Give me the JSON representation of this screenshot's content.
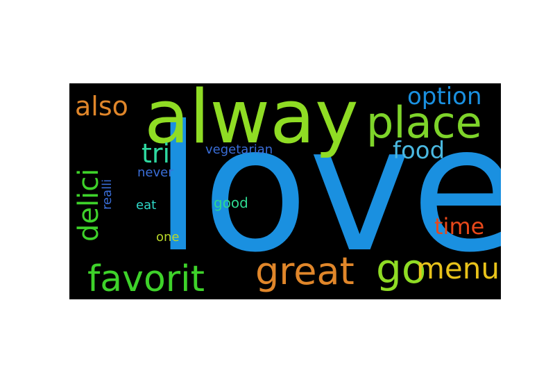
{
  "words": [
    {
      "id": "love",
      "text": "love",
      "color": "#1a90e0"
    },
    {
      "id": "alway",
      "text": "alway",
      "color": "#8fdc24"
    },
    {
      "id": "place",
      "text": "place",
      "color": "#7ed42a"
    },
    {
      "id": "great",
      "text": "great",
      "color": "#e0862a"
    },
    {
      "id": "favorit",
      "text": "favorit",
      "color": "#3ed22a"
    },
    {
      "id": "go",
      "text": "go",
      "color": "#8fdc24"
    },
    {
      "id": "menu",
      "text": "menu",
      "color": "#e8c21a"
    },
    {
      "id": "option",
      "text": "option",
      "color": "#1a90e0"
    },
    {
      "id": "also",
      "text": "also",
      "color": "#e0862a"
    },
    {
      "id": "delici",
      "text": "delici",
      "color": "#3ed22a"
    },
    {
      "id": "tri",
      "text": "tri",
      "color": "#2ed8a0"
    },
    {
      "id": "food",
      "text": "food",
      "color": "#4ab8e0"
    },
    {
      "id": "time",
      "text": "time",
      "color": "#e8481a"
    },
    {
      "id": "vegetarian",
      "text": "vegetarian",
      "color": "#3a6ed8"
    },
    {
      "id": "never",
      "text": "never",
      "color": "#3a6ed8"
    },
    {
      "id": "realli",
      "text": "realli",
      "color": "#3a6ed8"
    },
    {
      "id": "good",
      "text": "good",
      "color": "#2ed890"
    },
    {
      "id": "eat",
      "text": "eat",
      "color": "#2ed8c8"
    },
    {
      "id": "one",
      "text": "one",
      "color": "#b8d82a"
    }
  ]
}
